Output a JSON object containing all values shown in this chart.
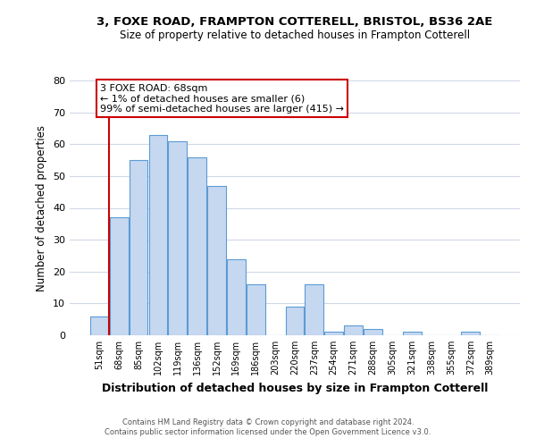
{
  "title": "3, FOXE ROAD, FRAMPTON COTTERELL, BRISTOL, BS36 2AE",
  "subtitle": "Size of property relative to detached houses in Frampton Cotterell",
  "xlabel": "Distribution of detached houses by size in Frampton Cotterell",
  "ylabel": "Number of detached properties",
  "annotation_line1": "3 FOXE ROAD: 68sqm",
  "annotation_line2": "← 1% of detached houses are smaller (6)",
  "annotation_line3": "99% of semi-detached houses are larger (415) →",
  "bar_color": "#c5d8f0",
  "bar_edge_color": "#5b9bd5",
  "marker_line_color": "#cc0000",
  "annotation_box_edge": "#cc0000",
  "background_color": "#ffffff",
  "grid_color": "#d0d8e8",
  "categories": [
    "51sqm",
    "68sqm",
    "85sqm",
    "102sqm",
    "119sqm",
    "136sqm",
    "152sqm",
    "169sqm",
    "186sqm",
    "203sqm",
    "220sqm",
    "237sqm",
    "254sqm",
    "271sqm",
    "288sqm",
    "305sqm",
    "321sqm",
    "338sqm",
    "355sqm",
    "372sqm",
    "389sqm"
  ],
  "values": [
    6,
    37,
    55,
    63,
    61,
    56,
    47,
    24,
    16,
    0,
    9,
    16,
    1,
    3,
    2,
    0,
    1,
    0,
    0,
    1,
    0
  ],
  "ylim": [
    0,
    80
  ],
  "yticks": [
    0,
    10,
    20,
    30,
    40,
    50,
    60,
    70,
    80
  ],
  "marker_bar_index": 1,
  "footer_line1": "Contains HM Land Registry data © Crown copyright and database right 2024.",
  "footer_line2": "Contains public sector information licensed under the Open Government Licence v3.0."
}
